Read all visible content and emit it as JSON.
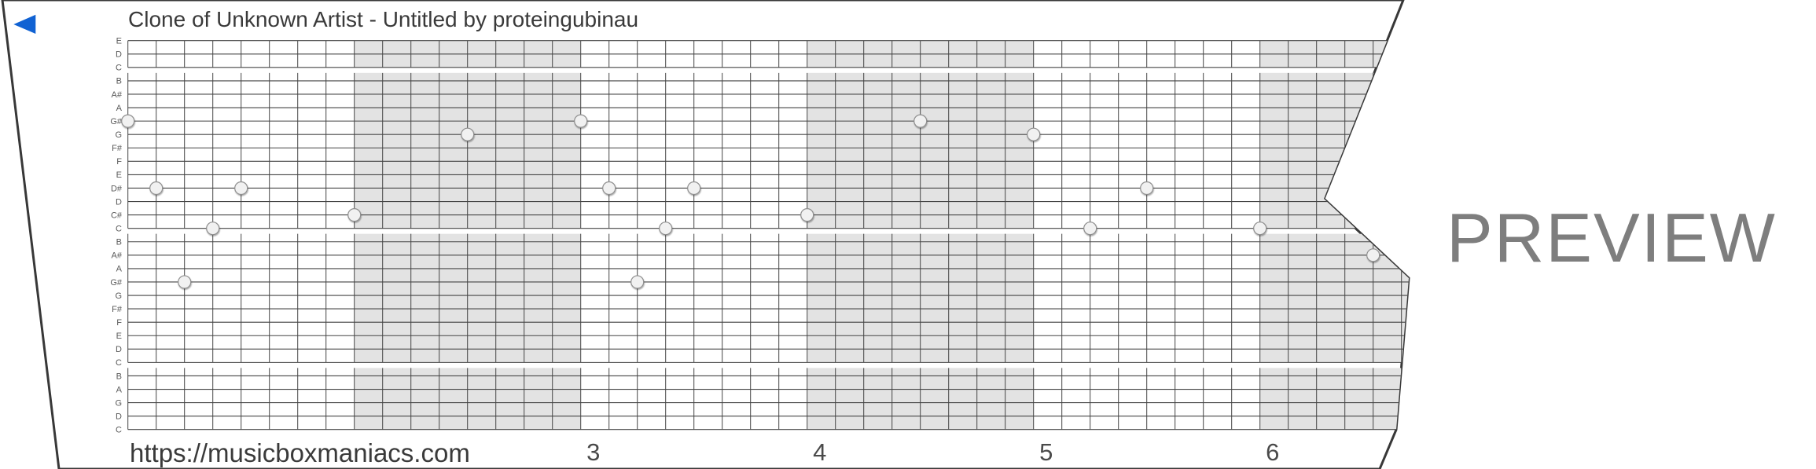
{
  "header": {
    "title": "Clone of Unknown Artist - Untitled by proteingubinau"
  },
  "watermark": "PREVIEW",
  "footer": {
    "url": "https://musicboxmaniacs.com",
    "measure_numbers": [
      {
        "label": "3",
        "col": 16
      },
      {
        "label": "4",
        "col": 24
      },
      {
        "label": "5",
        "col": 32
      },
      {
        "label": "6",
        "col": 40
      }
    ]
  },
  "play_icon": "left-triangle",
  "colors": {
    "accent_blue": "#1062d3",
    "strip_border": "#383838",
    "grid_line": "#454545",
    "shading": "#e3e3e3",
    "note_fill": "#f1f1f1",
    "note_stroke": "#8f8f8f",
    "label_text": "#5a5a5a",
    "number_text": "#4a4a4a",
    "title_text": "#3a3a3a",
    "watermark_text": "#7e7e7e"
  },
  "grid": {
    "row_labels": [
      "E",
      "D",
      "C",
      "B",
      "A#",
      "A",
      "G#",
      "G",
      "F#",
      "F",
      "E",
      "D#",
      "D",
      "C#",
      "C",
      "B",
      "A#",
      "A",
      "G#",
      "G",
      "F#",
      "F",
      "E",
      "D",
      "C",
      "B",
      "A",
      "G",
      "D",
      "C"
    ],
    "octave_break_after_rows": [
      2,
      14,
      24
    ],
    "shaded_measure_col_ranges": [
      [
        8,
        16
      ],
      [
        24,
        32
      ],
      [
        40,
        48
      ]
    ]
  },
  "notes": [
    {
      "col": 0,
      "row": 6,
      "pitch": "G#"
    },
    {
      "col": 1,
      "row": 11,
      "pitch": "D#"
    },
    {
      "col": 2,
      "row": 18,
      "pitch": "G#"
    },
    {
      "col": 3,
      "row": 14,
      "pitch": "C"
    },
    {
      "col": 4,
      "row": 11,
      "pitch": "D#"
    },
    {
      "col": 8,
      "row": 13,
      "pitch": "C#"
    },
    {
      "col": 12,
      "row": 7,
      "pitch": "G"
    },
    {
      "col": 16,
      "row": 6,
      "pitch": "G#"
    },
    {
      "col": 17,
      "row": 11,
      "pitch": "D#"
    },
    {
      "col": 18,
      "row": 18,
      "pitch": "G#"
    },
    {
      "col": 19,
      "row": 14,
      "pitch": "C"
    },
    {
      "col": 20,
      "row": 11,
      "pitch": "D#"
    },
    {
      "col": 24,
      "row": 13,
      "pitch": "C#"
    },
    {
      "col": 28,
      "row": 6,
      "pitch": "G#"
    },
    {
      "col": 32,
      "row": 7,
      "pitch": "G"
    },
    {
      "col": 34,
      "row": 14,
      "pitch": "C"
    },
    {
      "col": 36,
      "row": 11,
      "pitch": "D#"
    },
    {
      "col": 40,
      "row": 14,
      "pitch": "C"
    },
    {
      "col": 44,
      "row": 16,
      "pitch": "A#"
    }
  ]
}
